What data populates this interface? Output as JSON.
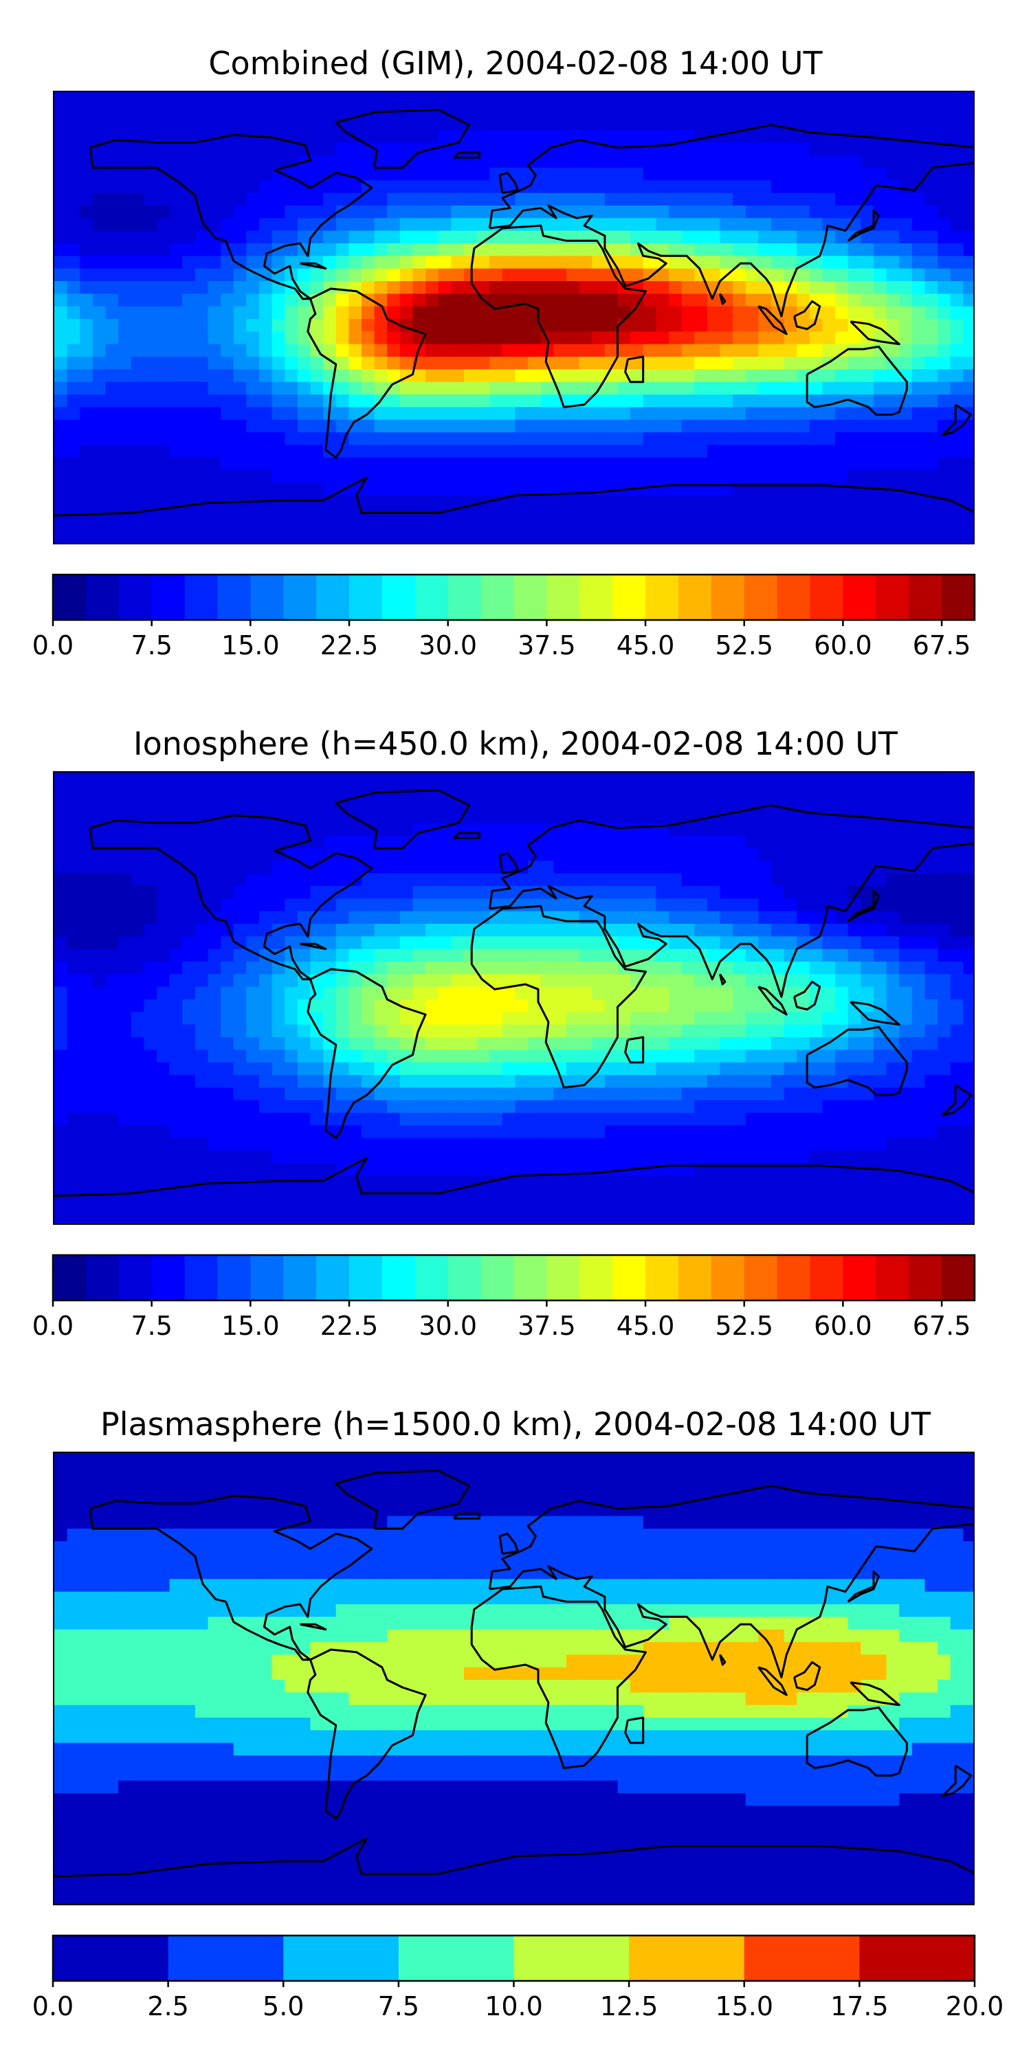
{
  "colormap": [
    "#00007f",
    "#0000ff",
    "#007fff",
    "#00ffff",
    "#7fff7f",
    "#ffff00",
    "#ff7f00",
    "#ff0000",
    "#7f0000"
  ],
  "chart_data": [
    {
      "type": "heatmap",
      "title": "Combined (GIM), 2004-02-08 14:00 UT",
      "colorbar": {
        "range": [
          0,
          70
        ],
        "step": 2.5,
        "tick_labels": [
          "0.0",
          "7.5",
          "15.0",
          "22.5",
          "30.0",
          "37.5",
          "45.0",
          "52.5",
          "60.0",
          "67.5"
        ]
      },
      "features": [
        {
          "lon": 20,
          "lat": 2,
          "sx": 75,
          "sy": 24,
          "v": 46
        },
        {
          "lon": 5,
          "lat": 5,
          "sx": 40,
          "sy": 16,
          "v": 14
        },
        {
          "lon": -42,
          "lat": -10,
          "sx": 30,
          "sy": 20,
          "v": 22
        },
        {
          "lon": 110,
          "lat": -2,
          "sx": 55,
          "sy": 18,
          "v": 18
        },
        {
          "lon": 160,
          "lat": -10,
          "sx": 40,
          "sy": 15,
          "v": 8
        },
        {
          "lon": -150,
          "lat": 35,
          "sx": 40,
          "sy": 15,
          "v": -4
        }
      ],
      "base": 7
    },
    {
      "type": "heatmap",
      "title": "Ionosphere  (h=450.0 km), 2004-02-08 14:00 UT",
      "colorbar": {
        "range": [
          0,
          70
        ],
        "step": 2.5,
        "tick_labels": [
          "0.0",
          "7.5",
          "15.0",
          "22.5",
          "30.0",
          "37.5",
          "45.0",
          "52.5",
          "60.0",
          "67.5"
        ]
      },
      "features": [
        {
          "lon": 15,
          "lat": 0,
          "sx": 80,
          "sy": 24,
          "v": 33
        },
        {
          "lon": -40,
          "lat": -12,
          "sx": 30,
          "sy": 20,
          "v": 10
        },
        {
          "lon": 115,
          "lat": 0,
          "sx": 35,
          "sy": 15,
          "v": 8
        },
        {
          "lon": 130,
          "lat": 35,
          "sx": 40,
          "sy": 12,
          "v": -5
        },
        {
          "lon": -150,
          "lat": 25,
          "sx": 40,
          "sy": 20,
          "v": -4
        }
      ],
      "base": 7
    },
    {
      "type": "heatmap",
      "title": "Plasmasphere (h=1500.0 km), 2004-02-08 14:00 UT",
      "colorbar": {
        "range": [
          0,
          20
        ],
        "step": 2.5,
        "tick_labels": [
          "0.0",
          "2.5",
          "5.0",
          "7.5",
          "10.0",
          "12.5",
          "15.0",
          "17.5",
          "20.0"
        ]
      },
      "features": [
        {
          "lon": 0,
          "lat": 5,
          "sx": 200,
          "sy": 28,
          "v": 8.5
        },
        {
          "lon": 110,
          "lat": 5,
          "sx": 45,
          "sy": 15,
          "v": 6
        },
        {
          "lon": -20,
          "lat": 3,
          "sx": 55,
          "sy": 12,
          "v": 2.5
        },
        {
          "lon": -40,
          "lat": -45,
          "sx": 70,
          "sy": 10,
          "v": -2
        }
      ],
      "base": 1.5
    }
  ]
}
